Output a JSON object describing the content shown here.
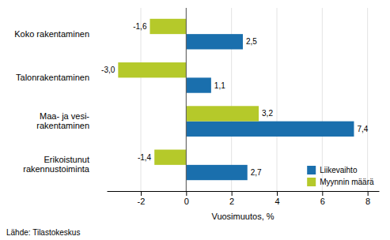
{
  "chart_data": {
    "type": "bar",
    "orientation": "horizontal",
    "categories": [
      "Koko rakentaminen",
      "Talonrakentaminen",
      "Maa- ja vesi-\nrakentaminen",
      "Erikoistunut\nrakennustoiminta"
    ],
    "series": [
      {
        "name": "Liikevaihto",
        "color": "#1a6fad",
        "values": [
          2.5,
          1.1,
          7.4,
          2.7
        ],
        "value_labels": [
          "2,5",
          "1,1",
          "7,4",
          "2,7"
        ]
      },
      {
        "name": "Myynnin määrä",
        "color": "#b5c92a",
        "values": [
          -1.6,
          -3.0,
          3.2,
          -1.4
        ],
        "value_labels": [
          "-1,6",
          "-3,0",
          "3,2",
          "-1,4"
        ]
      }
    ],
    "xlim": [
      -3.5,
      8.5
    ],
    "xticks": [
      -2,
      0,
      2,
      4,
      6,
      8
    ],
    "xlabel": "Vuosimuutos, %",
    "annotations": [
      "Lähde: Tilastokeskus"
    ],
    "grid": true,
    "legend": "lower right",
    "data_labels": true
  }
}
